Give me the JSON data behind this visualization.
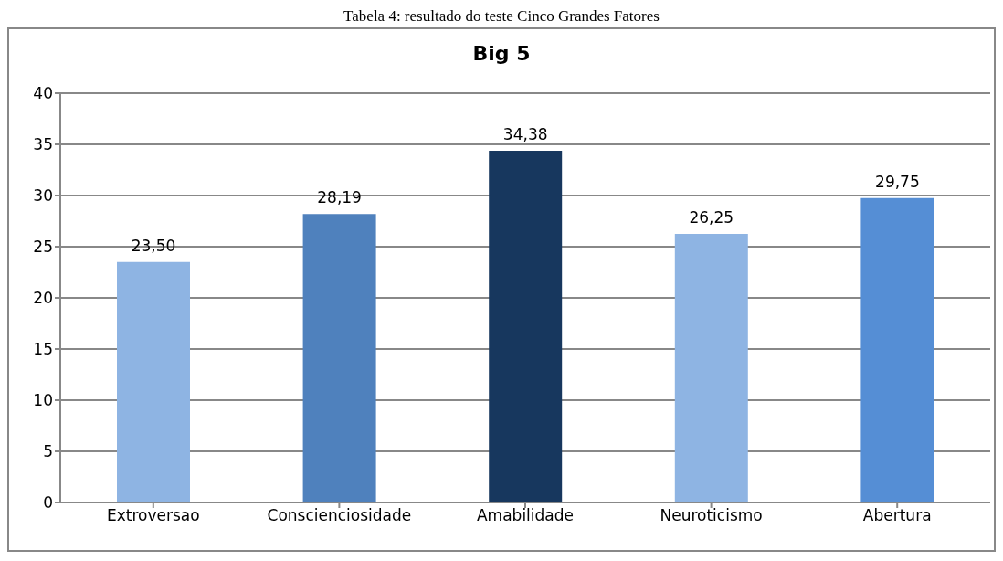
{
  "chart_data": {
    "type": "bar",
    "title": "Big 5",
    "annotations": [
      "Tabela 4: resultado do teste Cinco Grandes Fatores"
    ],
    "categories": [
      "Extroversao",
      "Conscienciosidade",
      "Amabilidade",
      "Neuroticismo",
      "Abertura"
    ],
    "values": [
      23.5,
      28.19,
      34.38,
      26.25,
      29.75
    ],
    "colors": [
      "#8eb4e3",
      "#4f81bd",
      "#17375e",
      "#8eb4e3",
      "#558ed5"
    ],
    "value_labels": [
      "23,50",
      "28,19",
      "34,38",
      "26,25",
      "29,75"
    ],
    "ylim": [
      0,
      40
    ],
    "yticks": [
      0,
      5,
      10,
      15,
      20,
      25,
      30,
      35,
      40
    ],
    "grid": "y"
  }
}
